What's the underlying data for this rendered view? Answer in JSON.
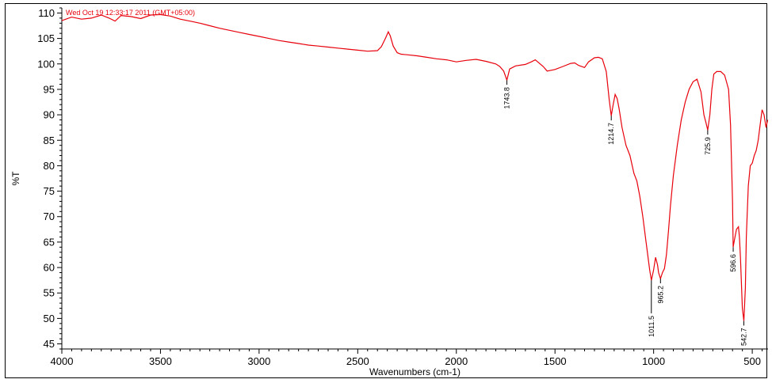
{
  "chart_data": {
    "type": "line",
    "title": "",
    "timestamp": "Wed Oct 19 12:33:17 2011 (GMT+05:00)",
    "xlabel": "Wavenumbers (cm-1)",
    "ylabel": "%T",
    "xlim": [
      4000,
      420
    ],
    "ylim": [
      44,
      111
    ],
    "x_ticks": [
      4000,
      3500,
      3000,
      2500,
      2000,
      1500,
      1000,
      500
    ],
    "y_ticks": [
      45,
      50,
      55,
      60,
      65,
      70,
      75,
      80,
      85,
      90,
      95,
      100,
      105,
      110
    ],
    "grid": false,
    "line_color": "#e8000b",
    "series": [
      {
        "x": [
          4000,
          3950,
          3900,
          3850,
          3800,
          3760,
          3730,
          3700,
          3650,
          3600,
          3550,
          3500,
          3450,
          3400,
          3350,
          3300,
          3250,
          3200,
          3150,
          3100,
          3050,
          3000,
          2950,
          2900,
          2850,
          2800,
          2750,
          2700,
          2650,
          2600,
          2550,
          2500,
          2450,
          2400,
          2380,
          2360,
          2345,
          2335,
          2320,
          2300,
          2280,
          2250,
          2200,
          2150,
          2100,
          2050,
          2000,
          1950,
          1900,
          1850,
          1800,
          1780,
          1760,
          1743.8,
          1730,
          1700,
          1650,
          1620,
          1600,
          1560,
          1540,
          1500,
          1460,
          1420,
          1400,
          1380,
          1350,
          1330,
          1300,
          1280,
          1260,
          1240,
          1225,
          1214.7,
          1205,
          1195,
          1185,
          1175,
          1160,
          1140,
          1120,
          1100,
          1085,
          1070,
          1055,
          1040,
          1030,
          1020,
          1011.5,
          1000,
          990,
          980,
          975,
          965.2,
          955,
          945,
          935,
          925,
          915,
          900,
          880,
          860,
          840,
          820,
          800,
          780,
          760,
          745,
          735,
          725.9,
          715,
          705,
          695,
          680,
          660,
          640,
          620,
          610,
          600,
          596.6,
          590,
          580,
          570,
          565,
          560,
          550,
          542.7,
          535,
          530,
          520,
          510,
          500,
          490,
          480,
          470,
          460,
          450,
          440,
          430,
          422
        ],
        "y": [
          108.5,
          109.2,
          108.8,
          109.0,
          109.6,
          109.0,
          108.4,
          109.5,
          109.3,
          108.9,
          109.6,
          109.7,
          109.4,
          108.8,
          108.4,
          108.0,
          107.5,
          107.0,
          106.6,
          106.2,
          105.8,
          105.4,
          105.0,
          104.6,
          104.3,
          104.0,
          103.7,
          103.5,
          103.3,
          103.1,
          102.9,
          102.7,
          102.5,
          102.6,
          103.4,
          105.0,
          106.3,
          105.5,
          103.5,
          102.2,
          101.9,
          101.8,
          101.6,
          101.3,
          101.0,
          100.8,
          100.4,
          100.7,
          100.9,
          100.5,
          100.0,
          99.5,
          98.6,
          96.8,
          99.0,
          99.6,
          99.9,
          100.4,
          100.8,
          99.5,
          98.6,
          98.9,
          99.5,
          100.1,
          100.2,
          99.7,
          99.3,
          100.4,
          101.2,
          101.3,
          101.0,
          98.5,
          93.0,
          89.8,
          92.0,
          94.0,
          93.2,
          91.2,
          87.5,
          84.0,
          82.0,
          78.5,
          77.0,
          74.0,
          70.0,
          65.5,
          62.5,
          59.5,
          57.5,
          59.5,
          62.0,
          60.5,
          59.0,
          57.8,
          59.0,
          59.8,
          62.5,
          67.0,
          72.0,
          78.0,
          84.0,
          89.0,
          92.5,
          95.0,
          96.5,
          97.0,
          94.5,
          90.0,
          88.5,
          87.0,
          90.0,
          95.0,
          98.0,
          98.5,
          98.5,
          97.8,
          95.0,
          88.0,
          73.0,
          64.0,
          65.5,
          67.5,
          68.0,
          66.0,
          62.0,
          52.0,
          49.5,
          56.0,
          66.0,
          76.0,
          80.0,
          80.5,
          82.0,
          83.0,
          85.0,
          88.0,
          91.0,
          90.0,
          87.5,
          89.0
        ]
      }
    ],
    "peak_labels": [
      {
        "x": 1743.8,
        "y_top": 96.8,
        "y_bottom": 95.9,
        "text": "1743.8"
      },
      {
        "x": 1214.7,
        "y_top": 89.8,
        "y_bottom": 88.9,
        "text": "1214.7"
      },
      {
        "x": 1011.5,
        "y_top": 57.5,
        "y_bottom": 51.0,
        "text": "1011.5"
      },
      {
        "x": 965.2,
        "y_top": 57.8,
        "y_bottom": 56.9,
        "text": "965.2"
      },
      {
        "x": 725.9,
        "y_top": 87.0,
        "y_bottom": 86.1,
        "text": "725.9"
      },
      {
        "x": 596.6,
        "y_top": 64.0,
        "y_bottom": 63.1,
        "text": "596.6"
      },
      {
        "x": 542.7,
        "y_top": 49.5,
        "y_bottom": 48.6,
        "text": "542.7"
      }
    ]
  }
}
